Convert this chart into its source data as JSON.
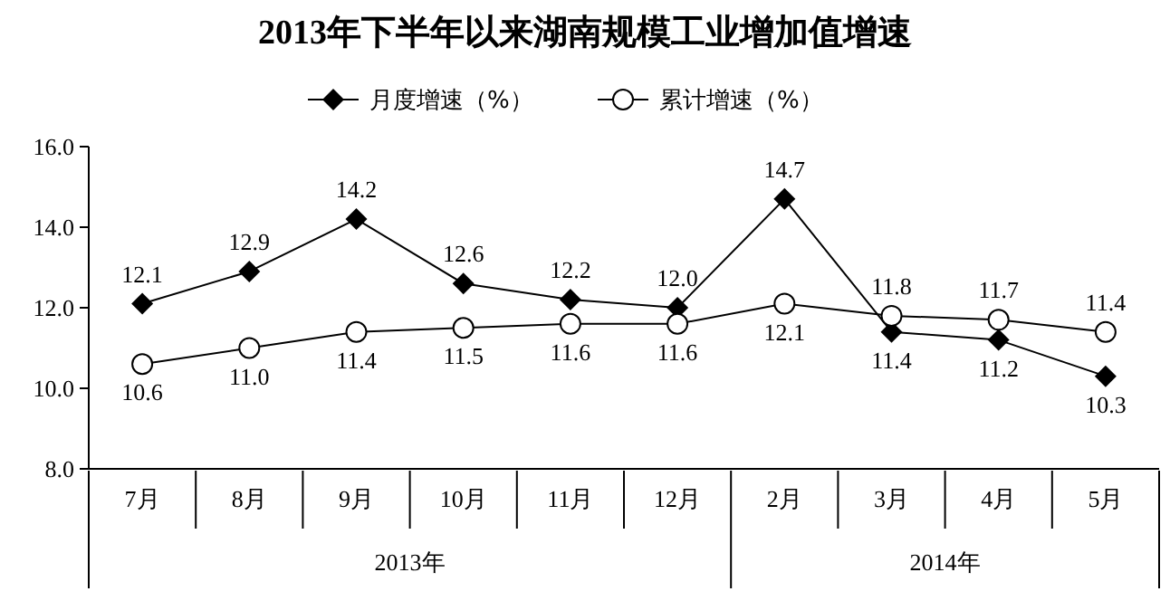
{
  "chart_data": {
    "type": "line",
    "title": "2013年下半年以来湖南规模工业增加值增速",
    "categories": [
      "7月",
      "8月",
      "9月",
      "10月",
      "11月",
      "12月",
      "2月",
      "3月",
      "4月",
      "5月"
    ],
    "series": [
      {
        "name": "月度增速（%）",
        "color": "#000000",
        "marker": "diamond",
        "values": [
          12.1,
          12.9,
          14.2,
          12.6,
          12.2,
          12.0,
          14.7,
          11.4,
          11.2,
          10.3
        ],
        "value_labels": [
          "12.1",
          "12.9",
          "14.2",
          "12.6",
          "12.2",
          "12.0",
          "14.7",
          "11.4",
          "11.2",
          "10.3"
        ]
      },
      {
        "name": "累计增速（%）",
        "color": "#000000",
        "marker": "circle",
        "values": [
          10.6,
          11.0,
          11.4,
          11.5,
          11.6,
          11.6,
          12.1,
          11.8,
          11.7,
          11.4
        ],
        "value_labels": [
          "10.6",
          "11.0",
          "11.4",
          "11.5",
          "11.6",
          "11.6",
          "12.1",
          "11.8",
          "11.7",
          "11.4"
        ]
      }
    ],
    "ylim": [
      8,
      16
    ],
    "yticks": [
      {
        "value": 8,
        "label": "8.0"
      },
      {
        "value": 10,
        "label": "10.0"
      },
      {
        "value": 12,
        "label": "12.0"
      },
      {
        "value": 14,
        "label": "14.0"
      },
      {
        "value": 16,
        "label": "16.0"
      }
    ],
    "annotations": [
      "2013年",
      "2014年"
    ],
    "grid": false,
    "legend": "top",
    "line_style": "solid"
  }
}
